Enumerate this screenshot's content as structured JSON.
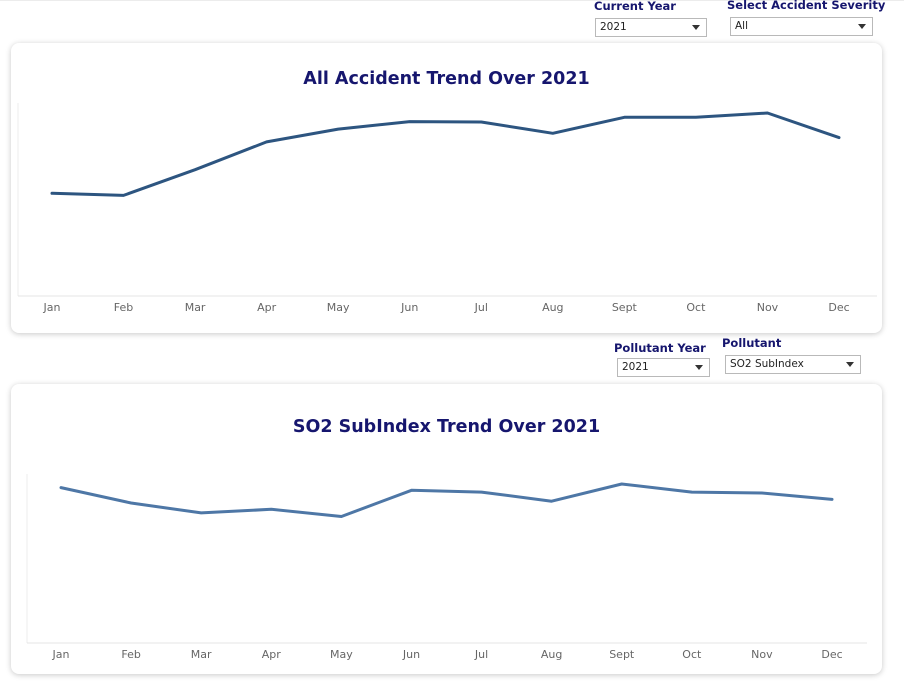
{
  "filters": {
    "current_year": {
      "label": "Current Year",
      "value": "2021"
    },
    "accident_severity": {
      "label": "Select Accident Severity",
      "value": "All"
    },
    "pollutant_year": {
      "label": "Pollutant Year",
      "value": "2021"
    },
    "pollutant": {
      "label": "Pollutant",
      "value": "SO2 SubIndex"
    }
  },
  "charts": {
    "accident": {
      "title": "All Accident Trend Over 2021"
    },
    "pollutant": {
      "title": "SO2 SubIndex Trend Over 2021"
    }
  },
  "colors": {
    "accident_line": "#2d5580",
    "pollutant_line": "#4e77a6",
    "title": "#16166e"
  },
  "chart_data": [
    {
      "type": "line",
      "title": "All Accident Trend Over 2021",
      "categories": [
        "Jan",
        "Feb",
        "Mar",
        "Apr",
        "May",
        "Jun",
        "Jul",
        "Aug",
        "Sept",
        "Oct",
        "Nov",
        "Dec"
      ],
      "values": [
        48,
        47,
        59,
        72,
        78,
        81.5,
        81.3,
        76,
        83.5,
        83.5,
        85.5,
        74
      ],
      "ylim": [
        0,
        85.5
      ],
      "grid": false,
      "legend": "none"
    },
    {
      "type": "line",
      "title": "SO2 SubIndex Trend Over 2021",
      "categories": [
        "Jan",
        "Feb",
        "Mar",
        "Apr",
        "May",
        "Jun",
        "Jul",
        "Aug",
        "Sept",
        "Oct",
        "Nov",
        "Dec"
      ],
      "values": [
        86,
        77.5,
        72,
        74,
        70,
        84.5,
        83.5,
        78.5,
        88,
        83.5,
        83,
        79.5
      ],
      "ylim": [
        0,
        88
      ],
      "grid": false,
      "legend": "none"
    }
  ]
}
